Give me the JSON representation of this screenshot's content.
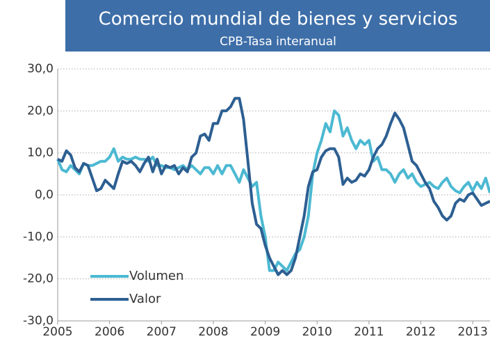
{
  "chart_data": {
    "type": "line",
    "title": "Comercio mundial de bienes y servicios",
    "subtitle": "CPB-Tasa interanual",
    "x": [
      2005,
      2005.083,
      2005.167,
      2005.25,
      2005.333,
      2005.417,
      2005.5,
      2005.583,
      2005.667,
      2005.75,
      2005.833,
      2005.917,
      2006,
      2006.083,
      2006.167,
      2006.25,
      2006.333,
      2006.417,
      2006.5,
      2006.583,
      2006.667,
      2006.75,
      2006.833,
      2006.917,
      2007,
      2007.083,
      2007.167,
      2007.25,
      2007.333,
      2007.417,
      2007.5,
      2007.583,
      2007.667,
      2007.75,
      2007.833,
      2007.917,
      2008,
      2008.083,
      2008.167,
      2008.25,
      2008.333,
      2008.417,
      2008.5,
      2008.583,
      2008.667,
      2008.75,
      2008.833,
      2008.917,
      2009,
      2009.083,
      2009.167,
      2009.25,
      2009.333,
      2009.417,
      2009.5,
      2009.583,
      2009.667,
      2009.75,
      2009.833,
      2009.917,
      2010,
      2010.083,
      2010.167,
      2010.25,
      2010.333,
      2010.417,
      2010.5,
      2010.583,
      2010.667,
      2010.75,
      2010.833,
      2010.917,
      2011,
      2011.083,
      2011.167,
      2011.25,
      2011.333,
      2011.417,
      2011.5,
      2011.583,
      2011.667,
      2011.75,
      2011.833,
      2011.917,
      2012,
      2012.083,
      2012.167,
      2012.25,
      2012.333,
      2012.417,
      2012.5,
      2012.583,
      2012.667,
      2012.75,
      2012.833,
      2012.917,
      2013,
      2013.083,
      2013.167,
      2013.25,
      2013.333
    ],
    "series": [
      {
        "name": "Volumen",
        "color": "#4cb9d2",
        "values": [
          8.5,
          6,
          5.5,
          7,
          6,
          5,
          7.5,
          7,
          7,
          7.5,
          8,
          8,
          9,
          11,
          8,
          9,
          8.5,
          8.5,
          9,
          8.5,
          8.5,
          8,
          9,
          7,
          7,
          6.5,
          6.5,
          6,
          6.5,
          7,
          6,
          7,
          6,
          5,
          6.5,
          6.5,
          5,
          7,
          5,
          7,
          7,
          5,
          3,
          6,
          4,
          2,
          3,
          -5,
          -10,
          -18,
          -18,
          -16,
          -17,
          -18,
          -16,
          -14,
          -13,
          -10,
          -5,
          5,
          10,
          13,
          17,
          15,
          20,
          19,
          14,
          16,
          13,
          11,
          13,
          12,
          13,
          8,
          9,
          6,
          6,
          5,
          3,
          5,
          6,
          4,
          5,
          3,
          2,
          2.5,
          3,
          2,
          1.5,
          3,
          4,
          2,
          1,
          0.5,
          2,
          3,
          1,
          3,
          1.5,
          4,
          0.5
        ]
      },
      {
        "name": "Valor",
        "color": "#2d5f92",
        "values": [
          8.5,
          8,
          10.5,
          9.5,
          6.5,
          5.5,
          7.5,
          7,
          4,
          1,
          1.5,
          3.5,
          2.5,
          1.5,
          5,
          8,
          7.5,
          8,
          7,
          5.5,
          7.5,
          9,
          5.5,
          8.5,
          5,
          7,
          6.5,
          7,
          5,
          6.5,
          5.5,
          9,
          10,
          14,
          14.5,
          13,
          17,
          17,
          20,
          20,
          21,
          23,
          23,
          18,
          8,
          -2,
          -7,
          -8,
          -12,
          -15,
          -17,
          -19,
          -18,
          -19,
          -18,
          -15,
          -10,
          -5,
          2,
          5.5,
          6,
          9,
          10.5,
          11,
          11,
          9,
          2.5,
          4,
          3,
          3.5,
          5,
          4.5,
          6,
          9,
          11,
          12,
          14,
          17,
          19.5,
          18,
          16,
          12,
          8,
          7,
          5,
          3,
          1.5,
          -1.5,
          -3,
          -5,
          -6,
          -5,
          -2,
          -1,
          -1.5,
          0,
          0.5,
          -1,
          -2.5,
          -2,
          -1.5
        ]
      }
    ],
    "xlim": [
      2005,
      2013.333
    ],
    "xticks": [
      2005,
      2006,
      2007,
      2008,
      2009,
      2010,
      2011,
      2012,
      2013
    ],
    "ylim": [
      -30,
      30
    ],
    "yticks": [
      {
        "value": -30,
        "label": "-30,0"
      },
      {
        "value": -20,
        "label": "-20,0"
      },
      {
        "value": -10,
        "label": "-10,0"
      },
      {
        "value": 0,
        "label": "0,0"
      },
      {
        "value": 10,
        "label": "10,0"
      },
      {
        "value": 20,
        "label": "20,0"
      },
      {
        "value": 30,
        "label": "30,0"
      }
    ],
    "grid": true,
    "legend": "lower left"
  }
}
